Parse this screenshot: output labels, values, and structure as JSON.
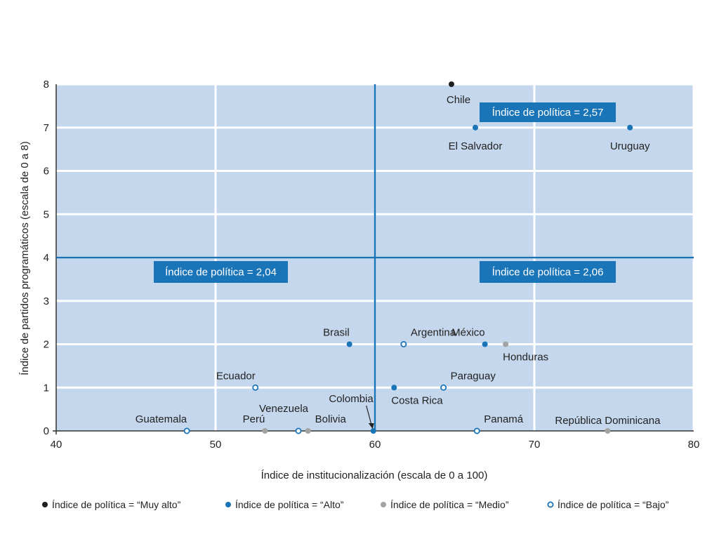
{
  "chart_data": {
    "type": "scatter",
    "xlabel": "Índice de institucionalización (escala de 0 a 100)",
    "ylabel": "Índice de partidos programáticos (escala de 0 a 8)",
    "xlim": [
      40,
      80
    ],
    "ylim": [
      0,
      8
    ],
    "xticks": [
      40,
      50,
      60,
      70,
      80
    ],
    "yticks": [
      0,
      1,
      2,
      3,
      4,
      5,
      6,
      7,
      8
    ],
    "grid": true,
    "reference_lines": {
      "x": 60,
      "y": 4
    },
    "colors": {
      "plot_bg": "#c5d7ec",
      "grid": "#ffffff",
      "accent": "#1a74b8",
      "muy_alto": "#1f1f1f",
      "alto": "#1a74b8",
      "medio": "#a3a3a3",
      "bajo_stroke": "#1a74b8",
      "bajo_fill": "#ffffff"
    },
    "categories": [
      {
        "key": "muy_alto",
        "label": "Índice de política = “Muy alto”"
      },
      {
        "key": "alto",
        "label": "Índice de política = “Alto”"
      },
      {
        "key": "medio",
        "label": "Índice de política = “Medio”"
      },
      {
        "key": "bajo",
        "label": "Índice de política = “Bajo”"
      }
    ],
    "points": [
      {
        "name": "Chile",
        "x": 64.8,
        "y": 8,
        "cat": "muy_alto",
        "pos": "below-left"
      },
      {
        "name": "El Salvador",
        "x": 66.3,
        "y": 7,
        "cat": "alto",
        "pos": "below"
      },
      {
        "name": "Uruguay",
        "x": 76,
        "y": 7,
        "cat": "alto",
        "pos": "below"
      },
      {
        "name": "Brasil",
        "x": 58.4,
        "y": 2,
        "cat": "alto",
        "pos": "above-left"
      },
      {
        "name": "Argentina",
        "x": 61.8,
        "y": 2,
        "cat": "bajo",
        "pos": "above-right"
      },
      {
        "name": "México",
        "x": 66.9,
        "y": 2,
        "cat": "alto",
        "pos": "above-left"
      },
      {
        "name": "Honduras",
        "x": 68.2,
        "y": 2,
        "cat": "medio",
        "pos": "below-right"
      },
      {
        "name": "Ecuador",
        "x": 52.5,
        "y": 1,
        "cat": "bajo",
        "pos": "above-left"
      },
      {
        "name": "Costa Rica",
        "x": 61.2,
        "y": 1,
        "cat": "alto",
        "pos": "below-right"
      },
      {
        "name": "Paraguay",
        "x": 64.3,
        "y": 1,
        "cat": "bajo",
        "pos": "above-right"
      },
      {
        "name": "Guatemala",
        "x": 48.2,
        "y": 0,
        "cat": "bajo",
        "pos": "above-left"
      },
      {
        "name": "Perú",
        "x": 53.1,
        "y": 0,
        "cat": "medio",
        "pos": "above-left"
      },
      {
        "name": "Venezuela",
        "x": 55.2,
        "y": 0,
        "cat": "bajo",
        "pos": "above-left2"
      },
      {
        "name": "Bolivia",
        "x": 55.8,
        "y": 0,
        "cat": "medio",
        "pos": "above-right"
      },
      {
        "name": "Colombia",
        "x": 59.9,
        "y": 0,
        "cat": "alto",
        "pos": "colombia"
      },
      {
        "name": "Panamá",
        "x": 66.4,
        "y": 0,
        "cat": "bajo",
        "pos": "above-right"
      },
      {
        "name": "República Dominicana",
        "x": 74.6,
        "y": 0,
        "cat": "medio",
        "pos": "above"
      }
    ],
    "annotations": [
      {
        "text": "Índice de política = 2,57",
        "quadrant": "top-right"
      },
      {
        "text": "Índice de política = 2,04",
        "quadrant": "bottom-left"
      },
      {
        "text": "Índice de política = 2,06",
        "quadrant": "bottom-right"
      }
    ]
  }
}
